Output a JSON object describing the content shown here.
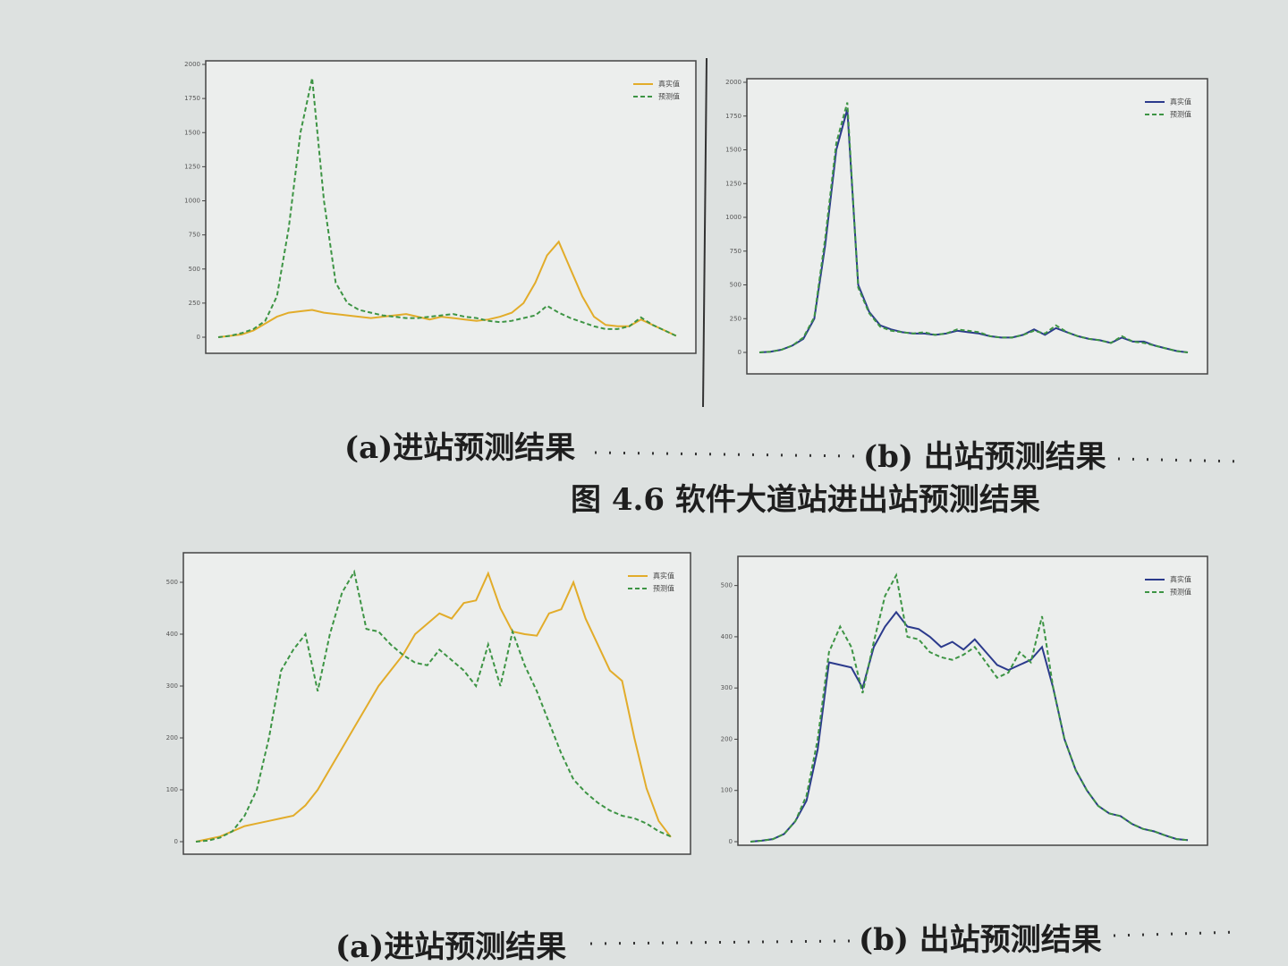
{
  "chart_data": [
    {
      "type": "line",
      "ylim": [
        0,
        2000
      ],
      "yticks": [
        0,
        250,
        500,
        750,
        1000,
        1250,
        1500,
        1750,
        2000
      ],
      "categories": [
        null,
        null,
        null,
        null,
        null,
        null,
        null,
        null,
        null,
        null,
        null,
        null,
        null,
        null,
        null,
        null,
        null,
        null,
        null,
        null,
        null,
        null,
        null,
        null,
        null,
        null,
        null,
        null,
        null,
        null,
        null,
        null,
        null,
        null,
        null,
        null,
        null,
        null,
        null,
        null
      ],
      "legend": "upper right",
      "series": [
        {
          "name": "真实值",
          "color": "#e2ac2a",
          "linestyle": "solid",
          "values": [
            0,
            10,
            20,
            50,
            100,
            150,
            180,
            190,
            200,
            180,
            170,
            160,
            150,
            140,
            150,
            160,
            170,
            150,
            130,
            150,
            140,
            130,
            120,
            130,
            150,
            180,
            250,
            400,
            600,
            700,
            500,
            300,
            150,
            90,
            80,
            80,
            130,
            90,
            50,
            10
          ]
        },
        {
          "name": "预测值",
          "color": "#3d9444",
          "linestyle": "dashed",
          "values": [
            0,
            10,
            30,
            60,
            120,
            300,
            800,
            1500,
            1900,
            1000,
            400,
            250,
            200,
            180,
            160,
            150,
            140,
            140,
            150,
            160,
            170,
            150,
            140,
            120,
            110,
            120,
            140,
            160,
            230,
            180,
            140,
            110,
            80,
            60,
            60,
            80,
            145,
            90,
            50,
            10
          ]
        }
      ]
    },
    {
      "type": "line",
      "ylim": [
        0,
        2000
      ],
      "yticks": [
        0,
        250,
        500,
        750,
        1000,
        1250,
        1500,
        1750,
        2000
      ],
      "categories": [
        null,
        null,
        null,
        null,
        null,
        null,
        null,
        null,
        null,
        null,
        null,
        null,
        null,
        null,
        null,
        null,
        null,
        null,
        null,
        null,
        null,
        null,
        null,
        null,
        null,
        null,
        null,
        null,
        null,
        null,
        null,
        null,
        null,
        null,
        null,
        null,
        null,
        null,
        null,
        null
      ],
      "legend": "upper right",
      "series": [
        {
          "name": "真实值",
          "color": "#2b3a8c",
          "linestyle": "solid",
          "values": [
            0,
            5,
            20,
            50,
            100,
            250,
            800,
            1500,
            1800,
            500,
            300,
            200,
            170,
            150,
            140,
            140,
            130,
            140,
            160,
            150,
            140,
            120,
            110,
            110,
            130,
            170,
            130,
            180,
            150,
            120,
            100,
            90,
            70,
            110,
            80,
            80,
            50,
            30,
            10,
            0
          ]
        },
        {
          "name": "预测值",
          "color": "#3d9444",
          "linestyle": "dashed",
          "values": [
            0,
            5,
            20,
            50,
            110,
            260,
            850,
            1550,
            1850,
            480,
            290,
            190,
            160,
            150,
            140,
            150,
            130,
            140,
            170,
            160,
            150,
            120,
            110,
            110,
            130,
            160,
            140,
            200,
            150,
            120,
            100,
            90,
            70,
            120,
            80,
            70,
            50,
            30,
            10,
            0
          ]
        }
      ]
    },
    {
      "type": "line",
      "ylim": [
        0,
        550
      ],
      "yticks": [
        0,
        100,
        200,
        300,
        400,
        500
      ],
      "categories": [
        null,
        null,
        null,
        null,
        null,
        null,
        null,
        null,
        null,
        null,
        null,
        null,
        null,
        null,
        null,
        null,
        null,
        null,
        null,
        null,
        null,
        null,
        null,
        null,
        null,
        null,
        null,
        null,
        null,
        null,
        null,
        null,
        null,
        null,
        null,
        null,
        null,
        null,
        null,
        null
      ],
      "legend": "upper right",
      "series": [
        {
          "name": "真实值",
          "color": "#e2ac2a",
          "linestyle": "solid",
          "values": [
            0,
            5,
            10,
            20,
            30,
            35,
            40,
            45,
            50,
            70,
            100,
            140,
            180,
            220,
            260,
            300,
            330,
            360,
            400,
            420,
            440,
            430,
            460,
            465,
            517,
            450,
            405,
            400,
            397,
            440,
            448,
            500,
            430,
            380,
            330,
            310,
            200,
            103,
            40,
            9
          ]
        },
        {
          "name": "预测值",
          "color": "#3d9444",
          "linestyle": "dashed",
          "values": [
            0,
            2,
            8,
            20,
            50,
            100,
            200,
            330,
            370,
            400,
            290,
            400,
            480,
            520,
            410,
            405,
            380,
            360,
            345,
            340,
            370,
            350,
            330,
            300,
            380,
            300,
            405,
            340,
            290,
            230,
            170,
            120,
            95,
            75,
            60,
            50,
            45,
            35,
            20,
            10
          ]
        }
      ]
    },
    {
      "type": "line",
      "ylim": [
        0,
        550
      ],
      "yticks": [
        0,
        100,
        200,
        300,
        400,
        500
      ],
      "categories": [
        null,
        null,
        null,
        null,
        null,
        null,
        null,
        null,
        null,
        null,
        null,
        null,
        null,
        null,
        null,
        null,
        null,
        null,
        null,
        null,
        null,
        null,
        null,
        null,
        null,
        null,
        null,
        null,
        null,
        null,
        null,
        null,
        null,
        null,
        null,
        null,
        null,
        null,
        null,
        null
      ],
      "legend": "upper right",
      "series": [
        {
          "name": "真实值",
          "color": "#2b3a8c",
          "linestyle": "solid",
          "values": [
            0,
            2,
            5,
            15,
            40,
            80,
            180,
            350,
            345,
            340,
            300,
            380,
            420,
            448,
            420,
            415,
            400,
            380,
            390,
            375,
            395,
            370,
            345,
            335,
            345,
            355,
            380,
            300,
            200,
            140,
            100,
            70,
            55,
            50,
            35,
            25,
            20,
            12,
            5,
            3
          ]
        },
        {
          "name": "预测值",
          "color": "#3d9444",
          "linestyle": "dashed",
          "values": [
            0,
            2,
            5,
            15,
            40,
            90,
            200,
            370,
            420,
            380,
            290,
            390,
            480,
            520,
            400,
            395,
            370,
            360,
            355,
            365,
            380,
            350,
            320,
            330,
            370,
            350,
            440,
            300,
            200,
            140,
            100,
            70,
            55,
            50,
            35,
            25,
            20,
            12,
            5,
            3
          ]
        }
      ]
    }
  ],
  "captions": {
    "top_a": "(a)进站预测结果",
    "top_b": "(b) 出站预测结果",
    "figure": "图 4.6 软件大道站进出站预测结果",
    "bottom_a": "(a)进站预测结果",
    "bottom_b": "(b) 出站预测结果"
  }
}
